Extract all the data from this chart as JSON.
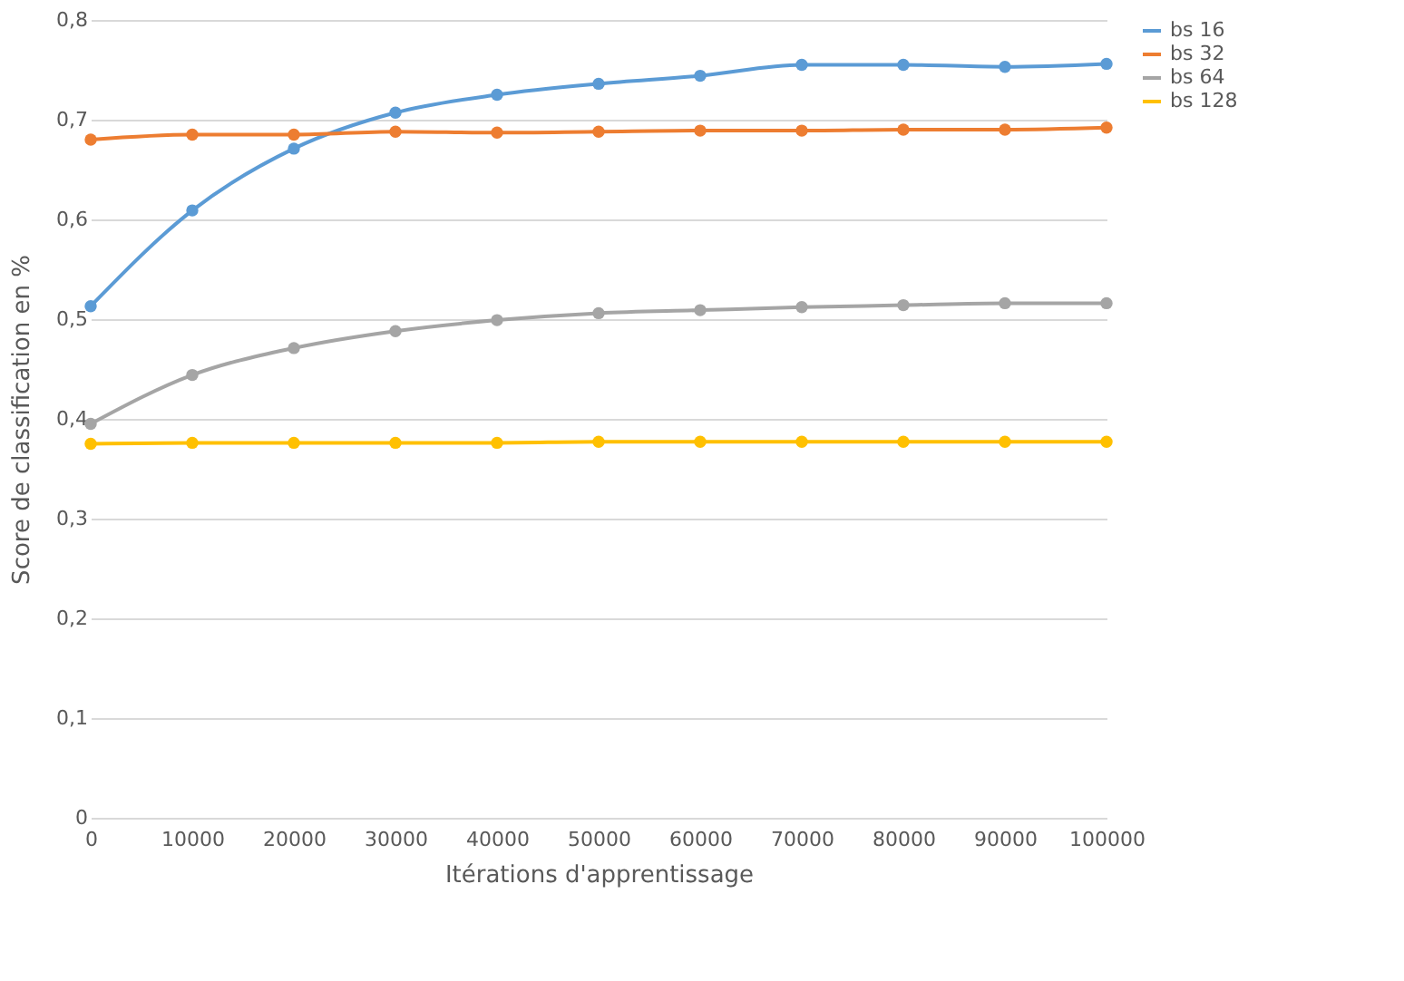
{
  "chart_data": {
    "type": "line",
    "xlabel": "Itérations d'apprentissage",
    "ylabel": "Score de classification en %",
    "x": [
      0,
      10000,
      20000,
      30000,
      40000,
      50000,
      60000,
      70000,
      80000,
      90000,
      100000
    ],
    "series": [
      {
        "name": "bs 16",
        "color": "#5b9bd5",
        "values": [
          0.513,
          0.609,
          0.671,
          0.707,
          0.725,
          0.736,
          0.744,
          0.755,
          0.755,
          0.753,
          0.756
        ]
      },
      {
        "name": "bs 32",
        "color": "#ed7d31",
        "values": [
          0.68,
          0.685,
          0.685,
          0.688,
          0.687,
          0.688,
          0.689,
          0.689,
          0.69,
          0.69,
          0.692
        ]
      },
      {
        "name": "bs 64",
        "color": "#a5a5a5",
        "values": [
          0.395,
          0.444,
          0.471,
          0.488,
          0.499,
          0.506,
          0.509,
          0.512,
          0.514,
          0.516,
          0.516
        ]
      },
      {
        "name": "bs 128",
        "color": "#ffc000",
        "values": [
          0.375,
          0.376,
          0.376,
          0.376,
          0.376,
          0.377,
          0.377,
          0.377,
          0.377,
          0.377,
          0.377
        ]
      }
    ],
    "xlim": [
      0,
      100000
    ],
    "xticks": [
      0,
      10000,
      20000,
      30000,
      40000,
      50000,
      60000,
      70000,
      80000,
      90000,
      100000
    ],
    "ylim": [
      0,
      0.8
    ],
    "yticks": [
      {
        "value": 0,
        "label": "0"
      },
      {
        "value": 0.1,
        "label": "0,1"
      },
      {
        "value": 0.2,
        "label": "0,2"
      },
      {
        "value": 0.3,
        "label": "0,3"
      },
      {
        "value": 0.4,
        "label": "0,4"
      },
      {
        "value": 0.5,
        "label": "0,5"
      },
      {
        "value": 0.6,
        "label": "0,6"
      },
      {
        "value": 0.7,
        "label": "0,7"
      },
      {
        "value": 0.8,
        "label": "0,8"
      }
    ],
    "grid": "y",
    "legend": "right",
    "marker": "circle",
    "line_style": "solid"
  }
}
